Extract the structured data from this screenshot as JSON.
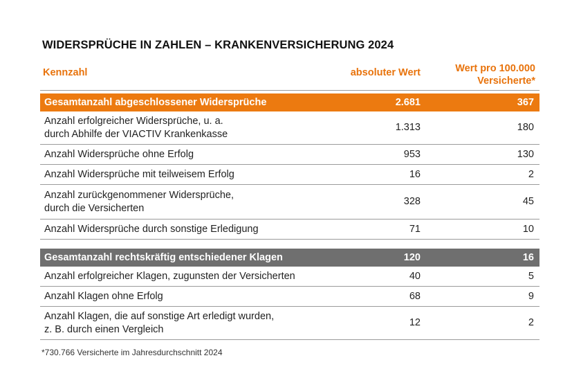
{
  "title": "WIDERSPRÜCHE IN ZAHLEN – KRANKENVERSICHERUNG 2024",
  "header": {
    "col1": "Kennzahl",
    "col2": "absoluter Wert",
    "col3_line1": "Wert pro 100.000",
    "col3_line2": "Versicherte*"
  },
  "group1": {
    "total": {
      "label": "Gesamtanzahl abgeschlossener Widersprüche",
      "abs": "2.681",
      "per": "367"
    },
    "rows": [
      {
        "line1": "Anzahl erfolgreicher Widersprüche, u. a.",
        "line2": "durch Abhilfe der VIACTIV Krankenkasse",
        "abs": "1.313",
        "per": "180"
      },
      {
        "line1": "Anzahl Widersprüche ohne Erfolg",
        "line2": "",
        "abs": "953",
        "per": "130"
      },
      {
        "line1": "Anzahl Widersprüche mit teilweisem Erfolg",
        "line2": "",
        "abs": "16",
        "per": "2"
      },
      {
        "line1": "Anzahl zurückgenommener Widersprüche,",
        "line2": "durch die Versicherten",
        "abs": "328",
        "per": "45"
      },
      {
        "line1": "Anzahl Widersprüche durch sonstige Erledigung",
        "line2": "",
        "abs": "71",
        "per": "10"
      }
    ]
  },
  "group2": {
    "total": {
      "label": "Gesamtanzahl rechtskräftig entschiedener Klagen",
      "abs": "120",
      "per": "16"
    },
    "rows": [
      {
        "line1": "Anzahl erfolgreicher Klagen, zugunsten der Versicherten",
        "line2": "",
        "abs": "40",
        "per": "5"
      },
      {
        "line1": "Anzahl Klagen ohne Erfolg",
        "line2": "",
        "abs": "68",
        "per": "9"
      },
      {
        "line1": "Anzahl Klagen, die auf sonstige Art erledigt wurden,",
        "line2": "z. B. durch einen Vergleich",
        "abs": "12",
        "per": "2"
      }
    ]
  },
  "footnote": "*730.766 Versicherte im Jahresdurchschnitt 2024",
  "colors": {
    "accent": "#ec7a10",
    "grey_total": "#6f6f6f",
    "header_text": "#e8730c"
  }
}
